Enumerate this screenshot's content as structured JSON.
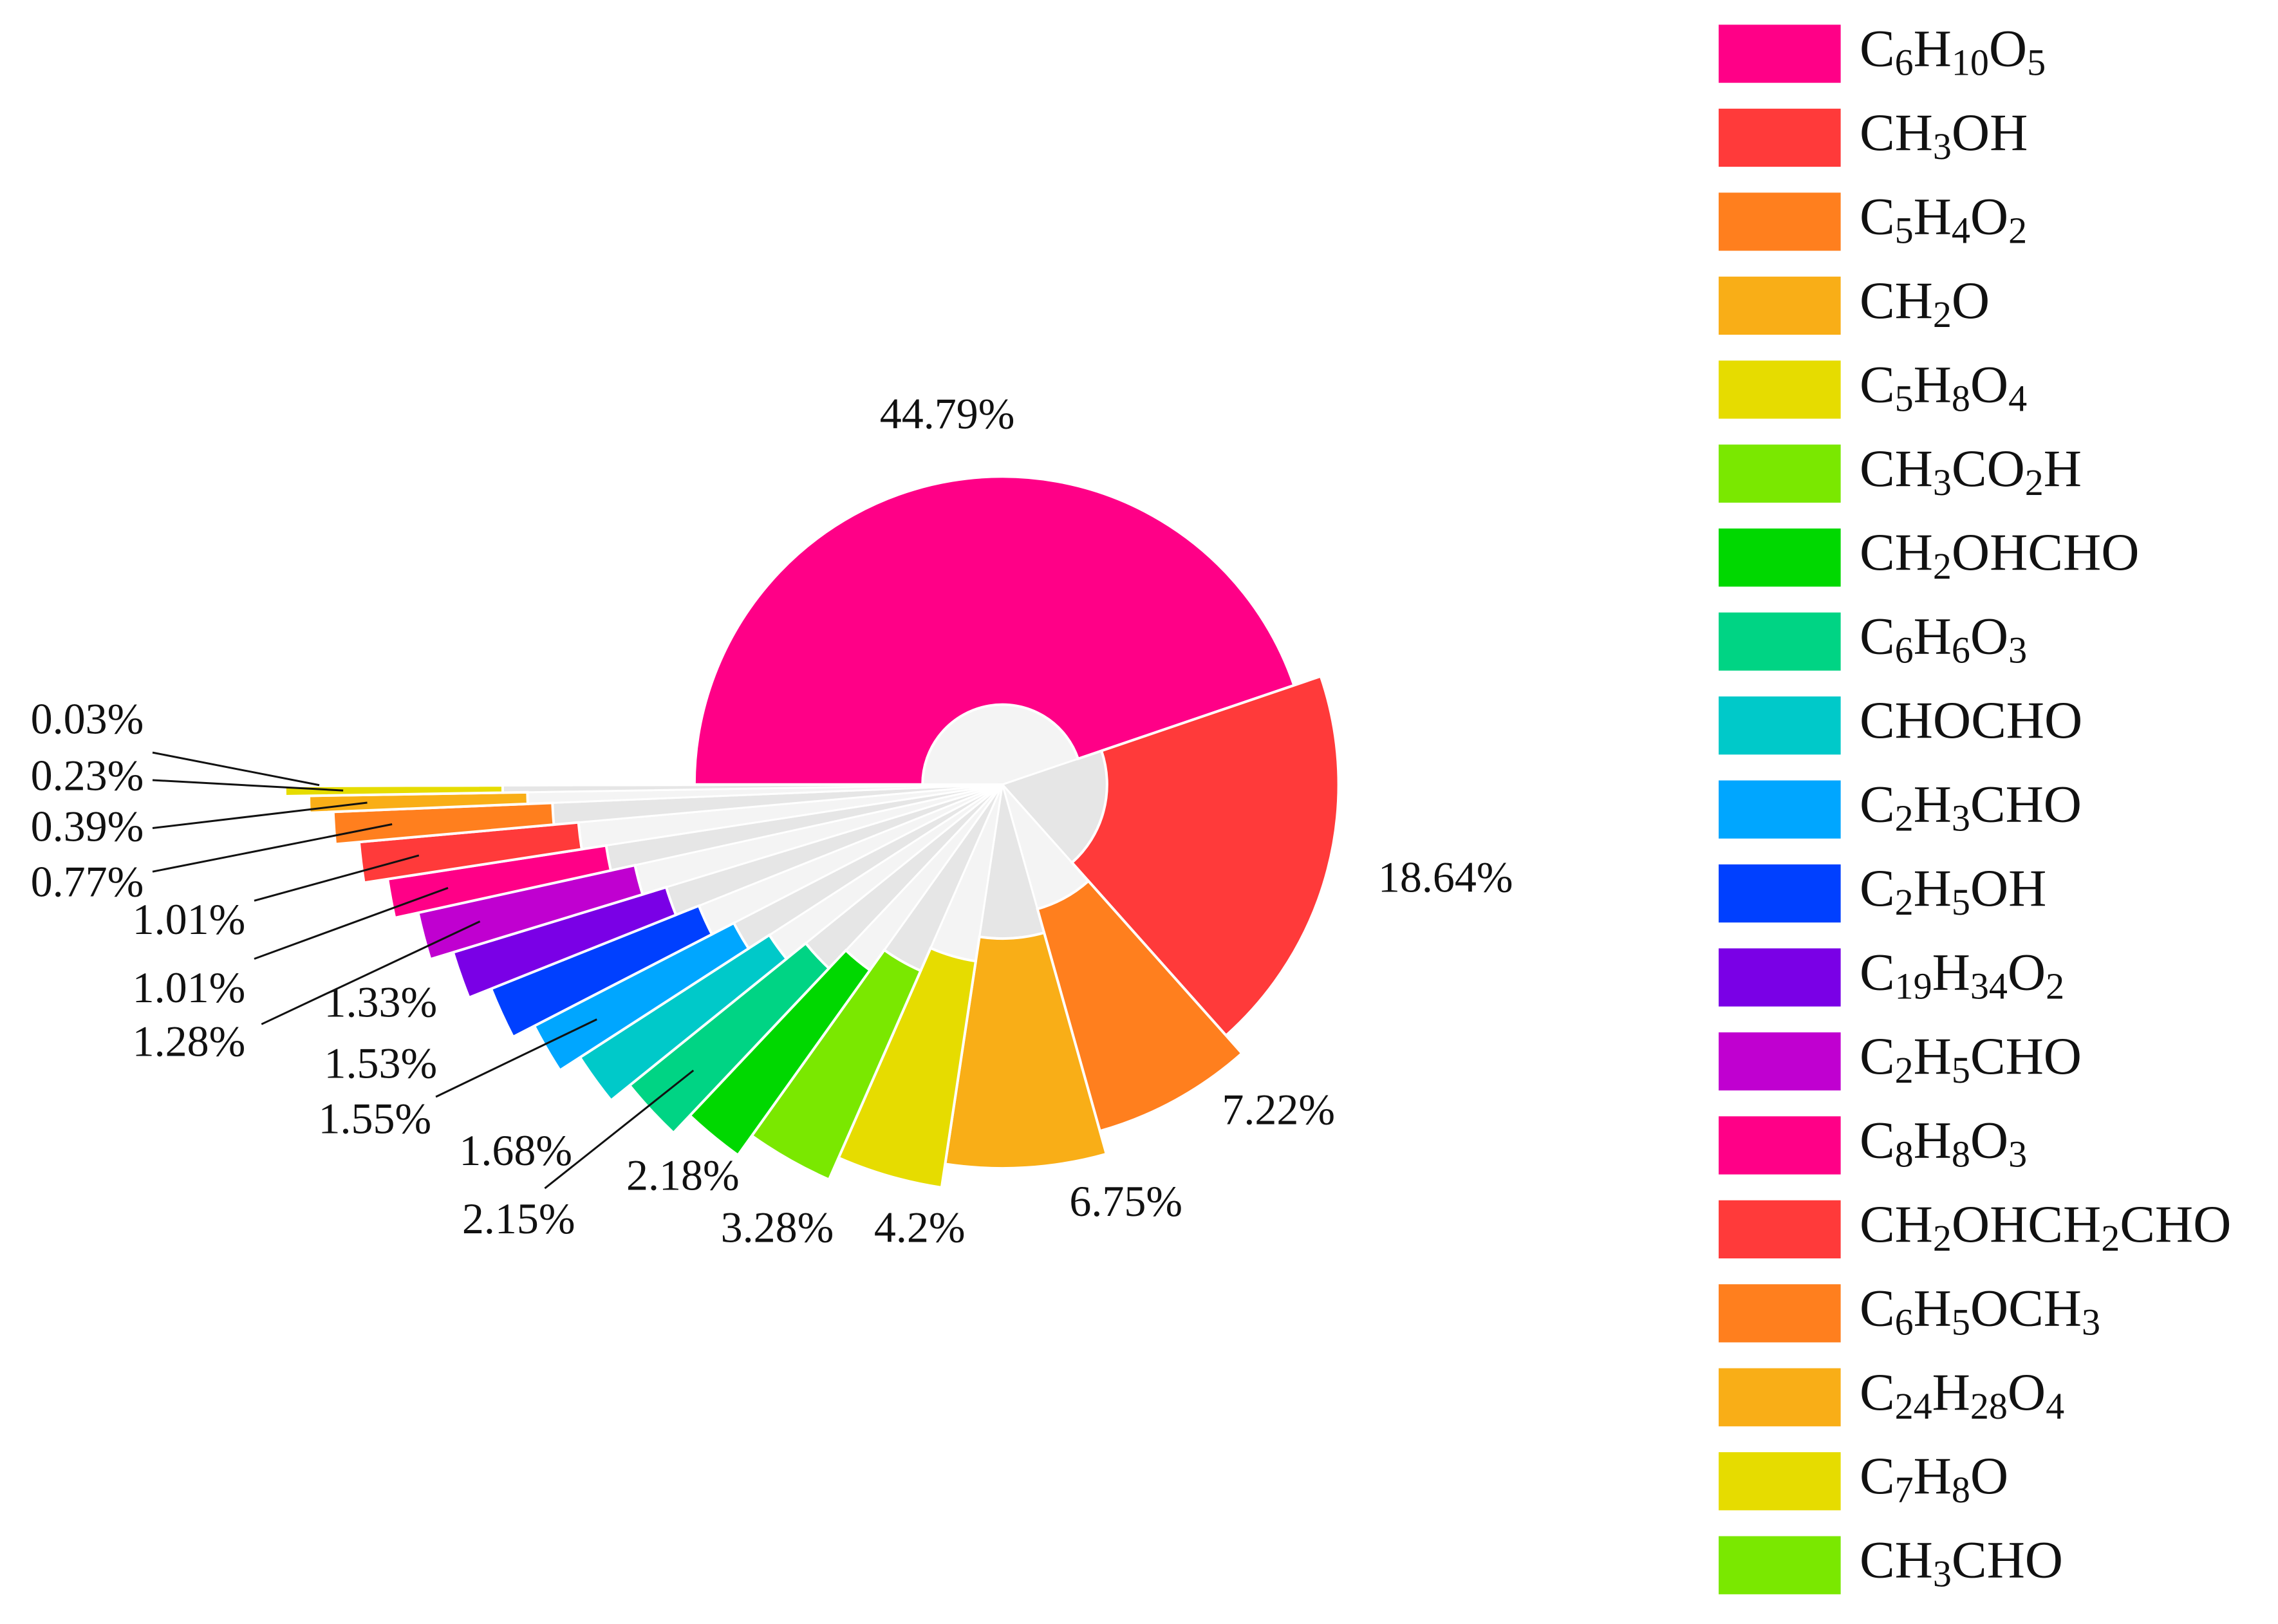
{
  "chart_data": {
    "type": "pie",
    "categories": [
      "C6H10O5",
      "CH3OH",
      "C5H4O2",
      "CH2O",
      "C5H8O4",
      "CH3CO2H",
      "CH2OHCHO",
      "C6H6O3",
      "CHOCHO",
      "C2H3CHO",
      "C2H5OH",
      "C19H34O2",
      "C2H5CHO",
      "C8H8O3",
      "CH2OHCH2CHO",
      "C6H5OCH3",
      "C24H28O4",
      "C7H8O",
      "CH3CHO"
    ],
    "values": [
      44.79,
      18.64,
      7.22,
      6.75,
      4.2,
      3.28,
      2.18,
      2.15,
      1.68,
      1.55,
      1.53,
      1.33,
      1.28,
      1.01,
      1.01,
      0.77,
      0.39,
      0.23,
      0.03
    ],
    "value_labels": [
      "44.79%",
      "18.64%",
      "7.22%",
      "6.75%",
      "4.2%",
      "3.28%",
      "2.18%",
      "2.15%",
      "1.68%",
      "1.55%",
      "1.53%",
      "1.33%",
      "1.28%",
      "1.01%",
      "1.01%",
      "0.77%",
      "0.39%",
      "0.23%",
      "0.03%"
    ],
    "colors": [
      "#ff0087",
      "#ff3a3a",
      "#ff7f1e",
      "#f9ae17",
      "#e6dc00",
      "#7ae800",
      "#00d800",
      "#00d484",
      "#00c9c9",
      "#00a6ff",
      "#0040ff",
      "#7a00e6",
      "#c000d0",
      "#ff0087",
      "#ff3a3a",
      "#ff7f1e",
      "#f9ae17",
      "#e6dc00",
      "#7ae800"
    ],
    "legend": true
  }
}
